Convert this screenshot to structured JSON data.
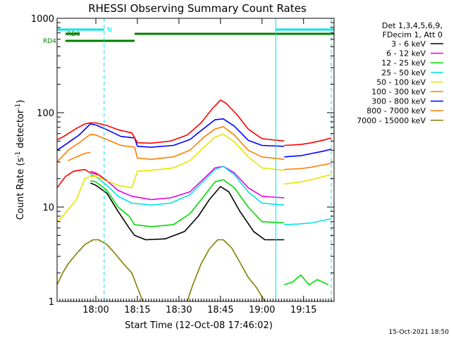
{
  "chart_data": {
    "type": "line",
    "title": "RHESSI Observing Summary Count Rates",
    "xlabel": "Start Time (12-Oct-08 17:46:02)",
    "ylabel_pre": "Count Rate (s",
    "ylabel_sup1": "-1",
    "ylabel_mid": " detector",
    "ylabel_sup2": "-1",
    "ylabel_post": ")",
    "yscale": "log",
    "ylim": [
      1,
      1000
    ],
    "xlim": [
      "17:46",
      "19:26"
    ],
    "x_ticks": [
      "18:00",
      "18:15",
      "18:30",
      "18:45",
      "19:00",
      "19:15"
    ],
    "y_ticks": [
      {
        "value": 1,
        "label": "1"
      },
      {
        "value": 10,
        "label": "10"
      },
      {
        "value": 100,
        "label": "100"
      },
      {
        "value": 1000,
        "label": "1000"
      }
    ],
    "grid": false,
    "legend_position": "top-right",
    "legend_header": [
      "Det 1,3,4,5,6,9,",
      "FDecim 1, Att 0"
    ],
    "timestamp": "15-Oct-2021 18:50",
    "flags": [
      {
        "label": "N",
        "color": "#00e5e5",
        "segments": [
          [
            "17:46",
            "18:03"
          ],
          [
            "19:05",
            "19:26"
          ]
        ]
      },
      {
        "label": "RD0",
        "color": "#008000",
        "segments": [
          [
            "17:49",
            "17:54"
          ],
          [
            "18:14",
            "19:26"
          ]
        ]
      },
      {
        "label": "RD4",
        "color": "#008000",
        "segments": [
          [
            "17:49",
            "18:14"
          ]
        ]
      }
    ],
    "vlines": [
      {
        "time": "17:46",
        "color": "#00e5e5",
        "style": "solid"
      },
      {
        "time": "18:03",
        "color": "#00e5e5",
        "style": "dashed"
      },
      {
        "time": "19:05",
        "color": "#00e5e5",
        "style": "solid"
      },
      {
        "time": "19:25",
        "color": "#00e5e5",
        "style": "dashed"
      }
    ],
    "series": [
      {
        "name": "3 - 6 keV",
        "color": "#000000",
        "values": [
          [
            [
              "17:58",
              18
            ],
            [
              "18:00",
              17
            ],
            [
              "18:04",
              14
            ],
            [
              "18:08",
              9
            ],
            [
              "18:12",
              6
            ],
            [
              "18:14",
              5
            ],
            [
              "18:18",
              4.5
            ],
            [
              "18:25",
              4.6
            ],
            [
              "18:32",
              5.5
            ],
            [
              "18:37",
              8
            ],
            [
              "18:41",
              12
            ],
            [
              "18:45",
              16.5
            ],
            [
              "18:48",
              14.5
            ],
            [
              "18:52",
              9
            ],
            [
              "18:57",
              5.5
            ],
            [
              "19:01",
              4.5
            ],
            [
              "19:08",
              4.5
            ]
          ]
        ]
      },
      {
        "name": "6 - 12 keV",
        "color": "#e600e6",
        "values": [
          [
            [
              "17:58",
              24
            ],
            [
              "18:00",
              23
            ],
            [
              "18:04",
              19
            ],
            [
              "18:08",
              15
            ],
            [
              "18:13",
              13
            ],
            [
              "18:20",
              12
            ],
            [
              "18:27",
              12.5
            ],
            [
              "18:34",
              14.5
            ],
            [
              "18:39",
              20
            ],
            [
              "18:43",
              26
            ],
            [
              "18:46",
              27
            ],
            [
              "18:50",
              23
            ],
            [
              "18:55",
              16
            ],
            [
              "19:00",
              13
            ],
            [
              "19:08",
              12.5
            ]
          ]
        ]
      },
      {
        "name": "12 - 25 keV",
        "color": "#00dd00",
        "values": [
          [
            [
              "17:58",
              19
            ],
            [
              "18:00",
              18.5
            ],
            [
              "18:04",
              15
            ],
            [
              "18:08",
              10
            ],
            [
              "18:12",
              8
            ],
            [
              "18:14",
              6.5
            ],
            [
              "18:20",
              6.2
            ],
            [
              "18:28",
              6.5
            ],
            [
              "18:34",
              8.5
            ],
            [
              "18:39",
              13
            ],
            [
              "18:43",
              18.5
            ],
            [
              "18:46",
              19.5
            ],
            [
              "18:50",
              16
            ],
            [
              "18:55",
              10
            ],
            [
              "19:00",
              7
            ],
            [
              "19:08",
              6.8
            ]
          ],
          [
            [
              "19:08",
              1.5
            ],
            [
              "19:11",
              1.6
            ],
            [
              "19:14",
              1.9
            ],
            [
              "19:17",
              1.5
            ],
            [
              "19:20",
              1.7
            ],
            [
              "19:24",
              1.5
            ]
          ]
        ]
      },
      {
        "name": "25 - 50 keV",
        "color": "#00e5e5",
        "values": [
          [
            [
              "17:58",
              22
            ],
            [
              "18:00",
              21
            ],
            [
              "18:04",
              17
            ],
            [
              "18:08",
              13
            ],
            [
              "18:13",
              11
            ],
            [
              "18:20",
              10.5
            ],
            [
              "18:27",
              11
            ],
            [
              "18:34",
              13.5
            ],
            [
              "18:39",
              19
            ],
            [
              "18:43",
              25
            ],
            [
              "18:46",
              27
            ],
            [
              "18:50",
              22
            ],
            [
              "18:55",
              14.5
            ],
            [
              "19:00",
              11
            ],
            [
              "19:08",
              10.5
            ]
          ],
          [
            [
              "19:08",
              6.5
            ],
            [
              "19:13",
              6.6
            ],
            [
              "19:18",
              6.8
            ],
            [
              "19:22",
              7.2
            ],
            [
              "19:25",
              7.5
            ]
          ]
        ]
      },
      {
        "name": "50 - 100 keV",
        "color": "#e6e600",
        "values": [
          [
            [
              "17:46",
              7
            ],
            [
              "17:48",
              8
            ],
            [
              "17:53",
              12
            ],
            [
              "17:56",
              20
            ],
            [
              "17:58",
              21
            ],
            [
              "18:00",
              21
            ],
            [
              "18:04",
              19
            ],
            [
              "18:08",
              17
            ],
            [
              "18:13",
              16
            ],
            [
              "18:15",
              24
            ],
            [
              "18:20",
              24.5
            ],
            [
              "18:28",
              26
            ],
            [
              "18:34",
              31
            ],
            [
              "18:39",
              43
            ],
            [
              "18:43",
              55
            ],
            [
              "18:46",
              59
            ],
            [
              "18:50",
              49
            ],
            [
              "18:55",
              34
            ],
            [
              "19:00",
              26
            ],
            [
              "19:08",
              24.5
            ]
          ],
          [
            [
              "19:08",
              17.5
            ],
            [
              "19:14",
              18.5
            ],
            [
              "19:18",
              19.5
            ],
            [
              "19:22",
              21
            ],
            [
              "19:25",
              22
            ]
          ]
        ]
      },
      {
        "name": "100 - 300 keV",
        "color": "#ff7f00",
        "values": [
          [
            [
              "17:46",
              30
            ],
            [
              "17:50",
              40
            ],
            [
              "17:54",
              48
            ],
            [
              "17:58",
              59
            ],
            [
              "18:00",
              58
            ],
            [
              "18:04",
              52
            ],
            [
              "18:09",
              45
            ],
            [
              "18:14",
              43
            ],
            [
              "18:15",
              33
            ],
            [
              "18:20",
              32
            ],
            [
              "18:28",
              34
            ],
            [
              "18:34",
              40
            ],
            [
              "18:39",
              55
            ],
            [
              "18:43",
              67
            ],
            [
              "18:46",
              71
            ],
            [
              "18:50",
              58
            ],
            [
              "18:55",
              40
            ],
            [
              "19:00",
              34
            ],
            [
              "19:08",
              32
            ]
          ],
          [
            [
              "19:08",
              25
            ],
            [
              "19:14",
              25.5
            ],
            [
              "19:18",
              26.5
            ],
            [
              "19:22",
              28
            ],
            [
              "19:25",
              29
            ]
          ]
        ]
      },
      {
        "name": "300 - 800 keV",
        "color": "#0000ff",
        "values": [
          [
            [
              "17:46",
              40
            ],
            [
              "17:50",
              48
            ],
            [
              "17:54",
              58
            ],
            [
              "17:58",
              76
            ],
            [
              "18:00",
              74
            ],
            [
              "18:04",
              66
            ],
            [
              "18:09",
              56
            ],
            [
              "18:14",
              54
            ],
            [
              "18:15",
              44
            ],
            [
              "18:20",
              43
            ],
            [
              "18:28",
              45
            ],
            [
              "18:34",
              52
            ],
            [
              "18:39",
              68
            ],
            [
              "18:43",
              84
            ],
            [
              "18:46",
              86
            ],
            [
              "18:50",
              72
            ],
            [
              "18:55",
              51
            ],
            [
              "19:00",
              45
            ],
            [
              "19:08",
              44
            ]
          ],
          [
            [
              "19:08",
              34
            ],
            [
              "19:14",
              35
            ],
            [
              "19:18",
              37
            ],
            [
              "19:22",
              39
            ],
            [
              "19:25",
              41
            ]
          ]
        ]
      },
      {
        "name": "800 - 7000 keV",
        "color": "#ff7f00",
        "values": [
          [
            [
              "17:50",
              31
            ],
            [
              "17:53",
              34
            ],
            [
              "17:56",
              37
            ],
            [
              "17:58",
              38
            ]
          ]
        ]
      },
      {
        "name": "7000 - 15000 keV",
        "color": "#808000",
        "values": [
          [
            [
              "17:46",
              1.5
            ],
            [
              "17:48",
              2
            ],
            [
              "17:50",
              2.5
            ],
            [
              "17:53",
              3.2
            ],
            [
              "17:56",
              4
            ],
            [
              "17:59",
              4.5
            ],
            [
              "18:01",
              4.5
            ],
            [
              "18:04",
              4
            ],
            [
              "18:07",
              3.2
            ],
            [
              "18:10",
              2.5
            ],
            [
              "18:13",
              2
            ],
            [
              "18:15",
              1.4
            ],
            [
              "18:17",
              1
            ]
          ],
          [
            [
              "18:33",
              1
            ],
            [
              "18:35",
              1.5
            ],
            [
              "18:38",
              2.5
            ],
            [
              "18:41",
              3.6
            ],
            [
              "18:44",
              4.5
            ],
            [
              "18:46",
              4.5
            ],
            [
              "18:49",
              3.7
            ],
            [
              "18:52",
              2.6
            ],
            [
              "18:55",
              1.8
            ],
            [
              "18:58",
              1.4
            ],
            [
              "19:01",
              1
            ]
          ]
        ]
      },
      {
        "name": "",
        "color": "#ff0000",
        "values": [
          [
            [
              "17:46",
              52
            ],
            [
              "17:48",
              55
            ],
            [
              "17:50",
              60
            ],
            [
              "17:53",
              68
            ],
            [
              "17:56",
              76
            ],
            [
              "17:58",
              78
            ],
            [
              "18:00",
              78
            ],
            [
              "18:04",
              73
            ],
            [
              "18:08",
              66
            ],
            [
              "18:13",
              61
            ],
            [
              "18:15",
              48
            ],
            [
              "18:20",
              47.5
            ],
            [
              "18:27",
              50
            ],
            [
              "18:33",
              58
            ],
            [
              "18:38",
              78
            ],
            [
              "18:42",
              110
            ],
            [
              "18:45",
              136
            ],
            [
              "18:47",
              126
            ],
            [
              "18:51",
              95
            ],
            [
              "18:55",
              67
            ],
            [
              "19:00",
              53
            ],
            [
              "19:08",
              50
            ]
          ],
          [
            [
              "17:46",
              16
            ],
            [
              "17:49",
              21
            ],
            [
              "17:52",
              24
            ],
            [
              "17:56",
              25
            ],
            [
              "17:58",
              23
            ],
            [
              "18:01",
              22
            ],
            [
              "18:04",
              19
            ]
          ],
          [
            [
              "19:08",
              45
            ],
            [
              "19:14",
              46
            ],
            [
              "19:18",
              48
            ],
            [
              "19:22",
              51
            ],
            [
              "19:25",
              54
            ]
          ]
        ]
      }
    ]
  }
}
